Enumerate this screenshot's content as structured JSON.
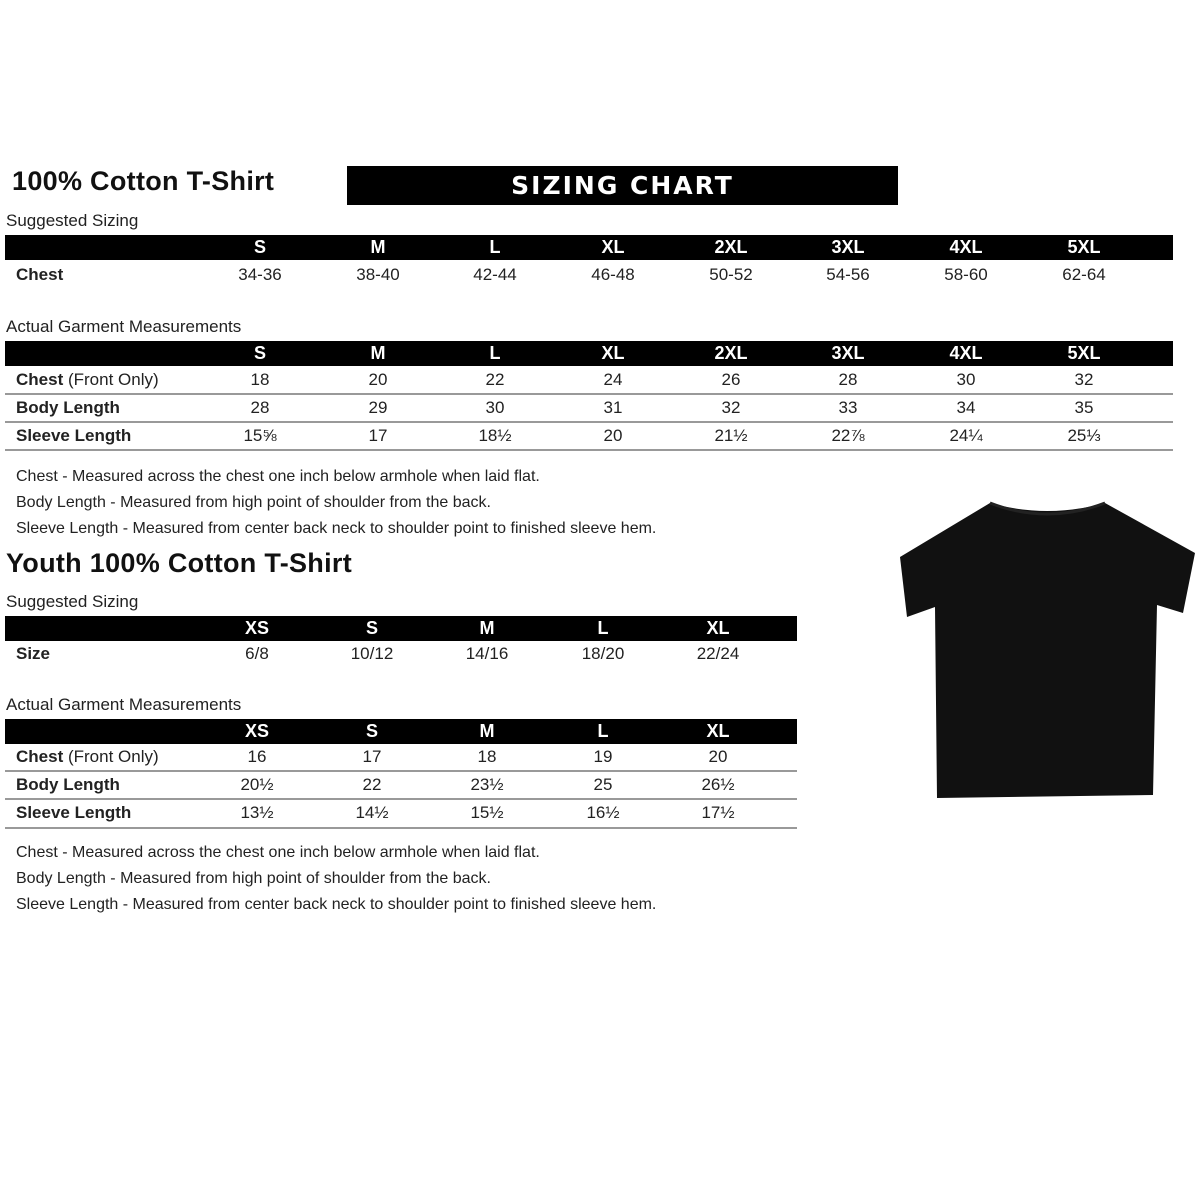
{
  "adult": {
    "title": "100% Cotton T-Shirt",
    "banner": "SIZING CHART",
    "suggested_label": "Suggested Sizing",
    "sizes": [
      "S",
      "M",
      "L",
      "XL",
      "2XL",
      "3XL",
      "4XL",
      "5XL"
    ],
    "suggested_rows": [
      {
        "label": "Chest",
        "values": [
          "34-36",
          "38-40",
          "42-44",
          "46-48",
          "50-52",
          "54-56",
          "58-60",
          "62-64"
        ]
      }
    ],
    "actual_label": "Actual Garment Measurements",
    "actual_rows": [
      {
        "label": "Chest",
        "label_suffix": " (Front Only)",
        "values": [
          "18",
          "20",
          "22",
          "24",
          "26",
          "28",
          "30",
          "32"
        ]
      },
      {
        "label": "Body Length",
        "values": [
          "28",
          "29",
          "30",
          "31",
          "32",
          "33",
          "34",
          "35"
        ]
      },
      {
        "label": "Sleeve Length",
        "values": [
          "15⅝",
          "17",
          "18½",
          "20",
          "21½",
          "22⅞",
          "24¼",
          "25⅓"
        ]
      }
    ],
    "notes": [
      "Chest - Measured across the chest one inch below armhole when laid flat.",
      "Body Length - Measured from high point of shoulder from the back.",
      "Sleeve Length - Measured from center back neck to shoulder point to finished sleeve hem."
    ]
  },
  "youth": {
    "title": "Youth 100% Cotton T-Shirt",
    "suggested_label": "Suggested Sizing",
    "sizes": [
      "XS",
      "S",
      "M",
      "L",
      "XL"
    ],
    "suggested_rows": [
      {
        "label": "Size",
        "values": [
          "6/8",
          "10/12",
          "14/16",
          "18/20",
          "22/24"
        ]
      }
    ],
    "actual_label": "Actual Garment Measurements",
    "actual_rows": [
      {
        "label": "Chest",
        "label_suffix": " (Front Only)",
        "values": [
          "16",
          "17",
          "18",
          "19",
          "20"
        ]
      },
      {
        "label": "Body Length",
        "values": [
          "20½",
          "22",
          "23½",
          "25",
          "26½"
        ]
      },
      {
        "label": "Sleeve Length",
        "values": [
          "13½",
          "14½",
          "15½",
          "16½",
          "17½"
        ]
      }
    ],
    "notes": [
      "Chest - Measured across the chest one inch below armhole when laid flat.",
      "Body Length - Measured from high point of shoulder from the back.",
      "Sleeve Length - Measured from center back neck to shoulder point to finished sleeve hem."
    ]
  },
  "colors": {
    "bar": "#000000",
    "shirt": "#111111",
    "separator": "#999999"
  },
  "image": {
    "icon": "tshirt-icon"
  }
}
